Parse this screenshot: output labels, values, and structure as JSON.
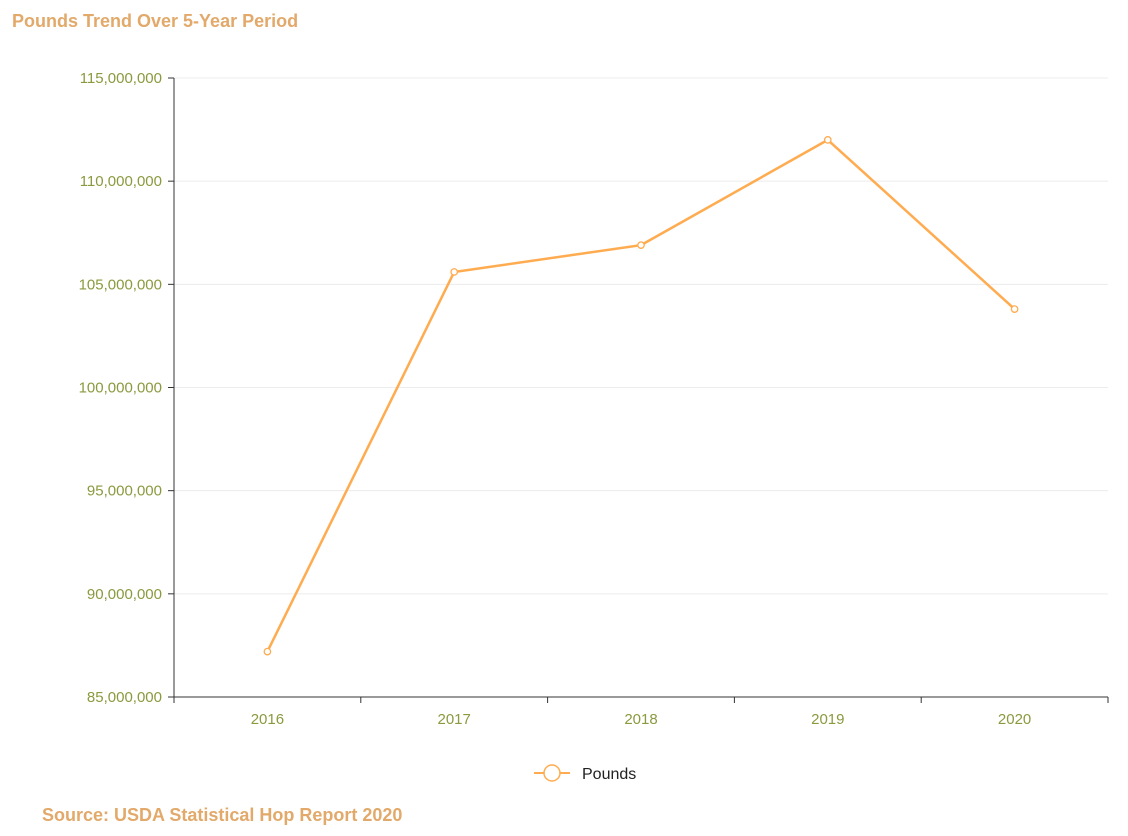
{
  "chart_data": {
    "type": "line",
    "title": "Pounds Trend Over 5-Year Period",
    "categories": [
      "2016",
      "2017",
      "2018",
      "2019",
      "2020"
    ],
    "series": [
      {
        "name": "Pounds",
        "values": [
          87200000,
          105600000,
          106900000,
          112000000,
          103800000
        ]
      }
    ],
    "ylim": [
      85000000,
      115000000
    ],
    "yticks": [
      85000000,
      90000000,
      95000000,
      100000000,
      105000000,
      110000000,
      115000000
    ],
    "ytick_labels": [
      "85,000,000",
      "90,000,000",
      "95,000,000",
      "100,000,000",
      "105,000,000",
      "110,000,000",
      "115,000,000"
    ],
    "grid": true,
    "legend_position": "bottom-center",
    "line_color": "#FFAB4F",
    "axis_label_color": "#8a9a3e",
    "title_color": "#E2A96A"
  },
  "footer": {
    "source": "Source: USDA Statistical Hop Report 2020"
  }
}
